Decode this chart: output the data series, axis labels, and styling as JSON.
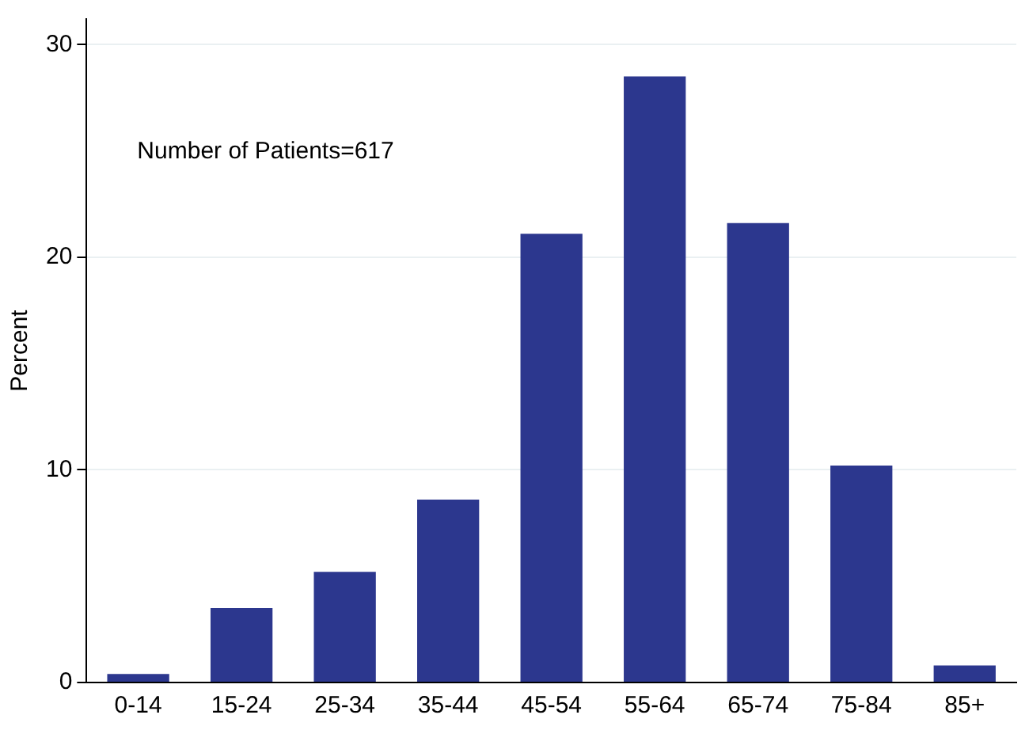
{
  "chart_data": {
    "type": "bar",
    "ylabel": "Percent",
    "annotations": [
      "Number of Patients=617"
    ],
    "categories": [
      "0-14",
      "15-24",
      "25-34",
      "35-44",
      "45-54",
      "55-64",
      "65-74",
      "75-84",
      "85+"
    ],
    "values": [
      0.4,
      3.5,
      5.2,
      8.6,
      21.1,
      28.5,
      21.6,
      10.2,
      0.8
    ],
    "color": "#2c378e",
    "ylim": [
      0,
      31.2
    ],
    "yticks": [
      0,
      10,
      20,
      30
    ],
    "grid": "y",
    "legend": false
  }
}
